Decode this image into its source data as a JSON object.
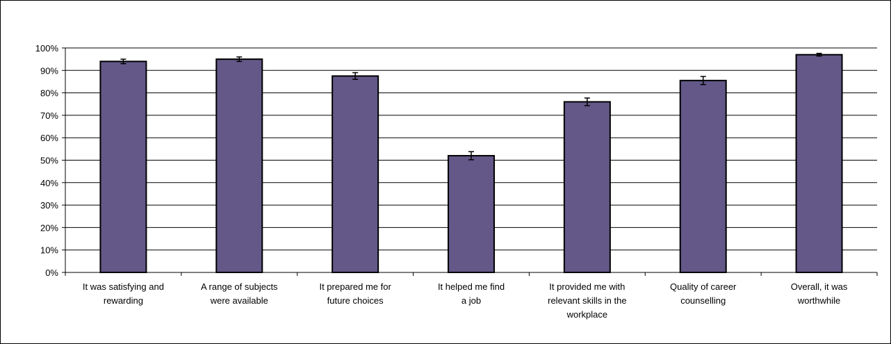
{
  "chart_data": {
    "type": "bar",
    "categories": [
      [
        "It was satisfying and",
        "rewarding"
      ],
      [
        "A range of subjects",
        "were available"
      ],
      [
        "It prepared me for",
        "future choices"
      ],
      [
        "It helped me find",
        "a job"
      ],
      [
        "It provided me with",
        "relevant skills in the",
        "workplace"
      ],
      [
        "Quality of career",
        "counselling"
      ],
      [
        "Overall, it was",
        "worthwhile"
      ]
    ],
    "values": [
      94,
      95,
      87.5,
      52,
      76,
      85.5,
      97
    ],
    "error": [
      1,
      1,
      1.5,
      1.8,
      1.7,
      1.8,
      0.6
    ],
    "ylim": [
      0,
      100
    ],
    "yticks": [
      "0%",
      "10%",
      "20%",
      "30%",
      "40%",
      "50%",
      "60%",
      "70%",
      "80%",
      "90%",
      "100%"
    ],
    "grid": true,
    "title": "",
    "xlabel": "",
    "ylabel": "",
    "colors": {
      "bar": "#635888",
      "bar_stroke": "#000000",
      "grid": "#000000"
    }
  }
}
